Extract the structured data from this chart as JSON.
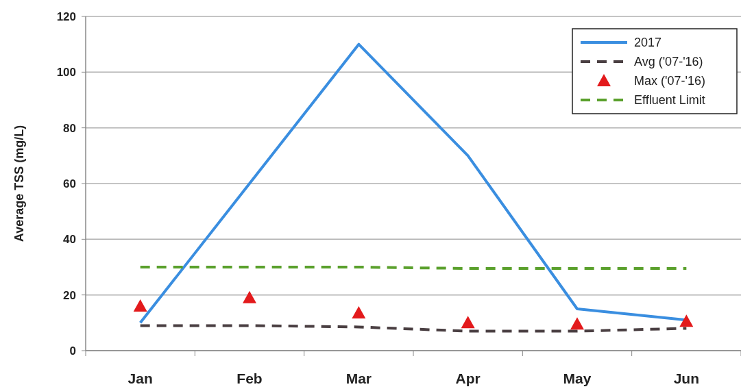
{
  "chart_data": {
    "type": "line",
    "ylabel": "Average TSS (mg/L)",
    "categories": [
      "Jan",
      "Feb",
      "Mar",
      "Apr",
      "May",
      "Jun"
    ],
    "series": [
      {
        "name": "2017",
        "color": "#3a8ee0",
        "values": [
          10,
          60,
          110,
          70,
          15,
          11
        ],
        "line_style": "solid",
        "marker": "none"
      },
      {
        "name": "Avg ('07-'16)",
        "color": "#4a3f42",
        "values": [
          9,
          9,
          8.5,
          7,
          7,
          8
        ],
        "line_style": "dashed",
        "marker": "none"
      },
      {
        "name": "Max ('07-'16)",
        "type": "scatter",
        "color": "#e31a1c",
        "values": [
          16,
          19,
          13.5,
          10,
          9.5,
          10.5
        ],
        "marker": "triangle"
      },
      {
        "name": "Effluent Limit",
        "color": "#5aa02c",
        "values": [
          30,
          30,
          30,
          29.5,
          29.5,
          29.5
        ],
        "line_style": "dashed",
        "marker": "none"
      }
    ],
    "ylim": [
      0,
      120
    ],
    "yticks": [
      0,
      20,
      40,
      60,
      80,
      100,
      120
    ],
    "grid": "y",
    "legend": "top right"
  }
}
